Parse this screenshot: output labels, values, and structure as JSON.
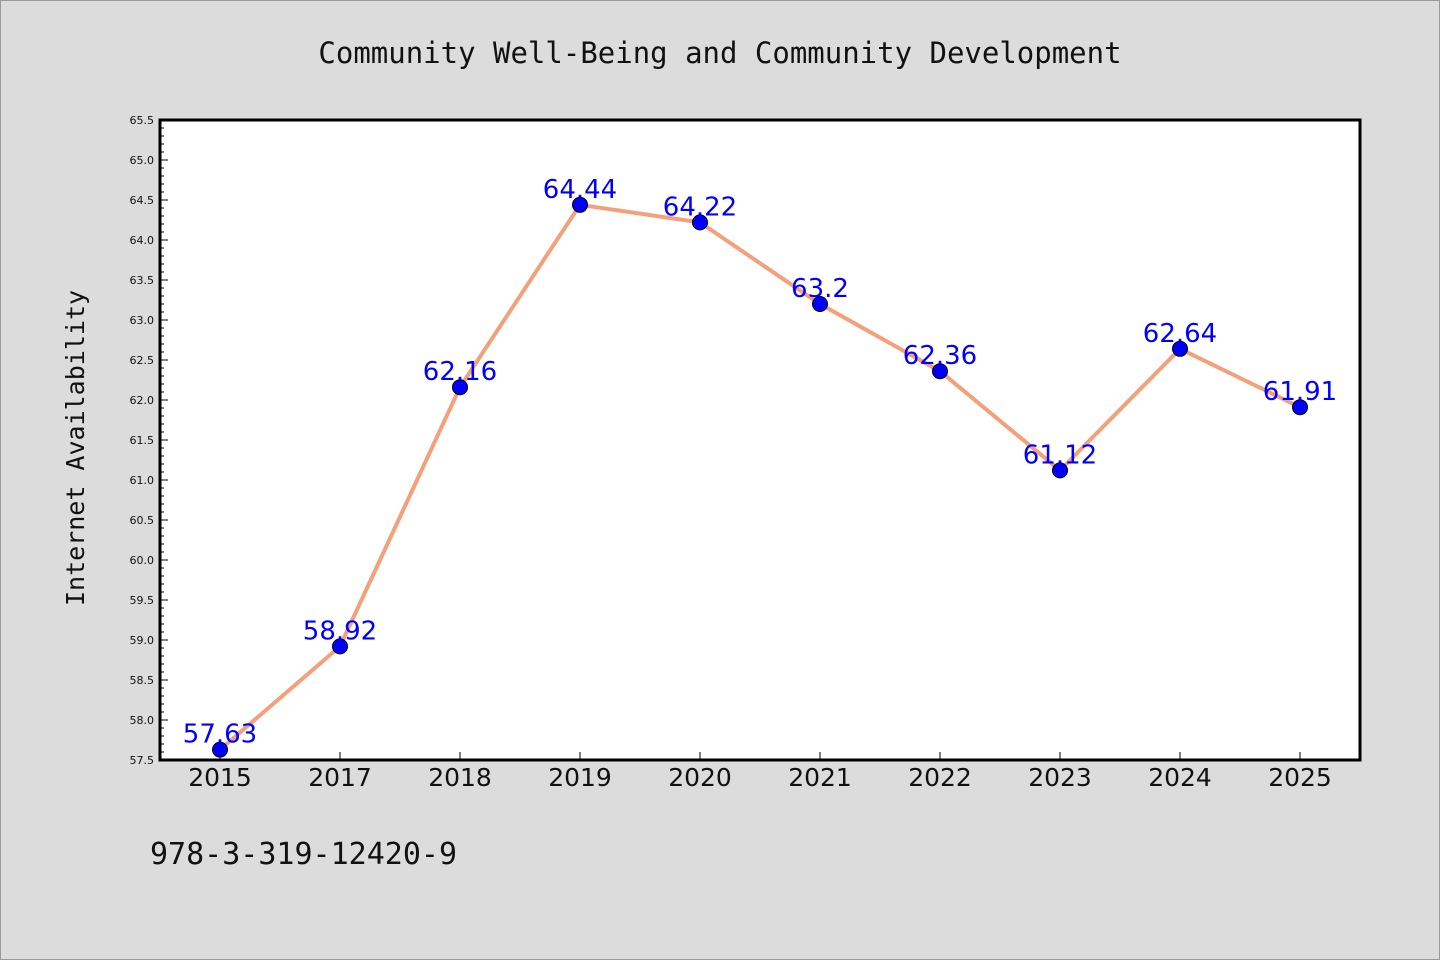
{
  "colors": {
    "background": "#dcdcdc",
    "plot_background": "#ffffff",
    "line": "#f4a07a",
    "marker": "#0000ff",
    "data_label": "#0000ff",
    "axis": "#000000"
  },
  "chart_data": {
    "type": "line",
    "title": "Community Well-Being and Community Development",
    "xlabel": "",
    "ylabel": "Internet Availability",
    "categories": [
      "2015",
      "2017",
      "2018",
      "2019",
      "2020",
      "2021",
      "2022",
      "2023",
      "2024",
      "2025"
    ],
    "series": [
      {
        "values": [
          57.63,
          58.92,
          62.16,
          64.44,
          64.22,
          63.2,
          62.36,
          61.12,
          62.64,
          61.91
        ],
        "labels": [
          "57.63",
          "58.92",
          "62.16",
          "64.44",
          "64.22",
          "63.2",
          "62.36",
          "61.12",
          "62.64",
          "61.91"
        ]
      }
    ],
    "ylim": [
      57.5,
      65.5
    ],
    "yticks": [
      "57.5",
      "58.0",
      "58.5",
      "59.0",
      "59.5",
      "60.0",
      "60.5",
      "61.0",
      "61.5",
      "62.0",
      "62.5",
      "63.0",
      "63.5",
      "64.0",
      "64.5",
      "65.0",
      "65.5"
    ],
    "grid": false,
    "legend": "none",
    "marker": "circle",
    "data_labels": true
  },
  "footer": {
    "isbn": "978-3-319-12420-9"
  }
}
